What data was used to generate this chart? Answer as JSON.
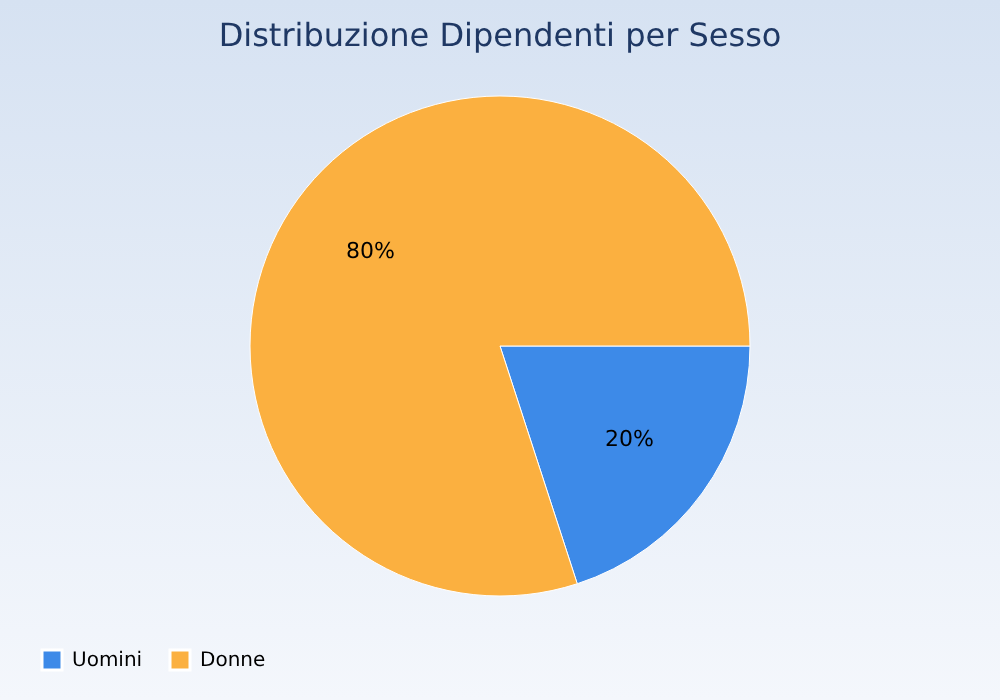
{
  "chart_data": {
    "type": "pie",
    "title": "Distribuzione Dipendenti per Sesso",
    "categories": [
      "Uomini",
      "Donne"
    ],
    "values": [
      20,
      80
    ],
    "colors": [
      "#3d8ae8",
      "#fbb040"
    ],
    "value_labels": [
      "20%",
      "80%"
    ],
    "legend": "bottom"
  }
}
